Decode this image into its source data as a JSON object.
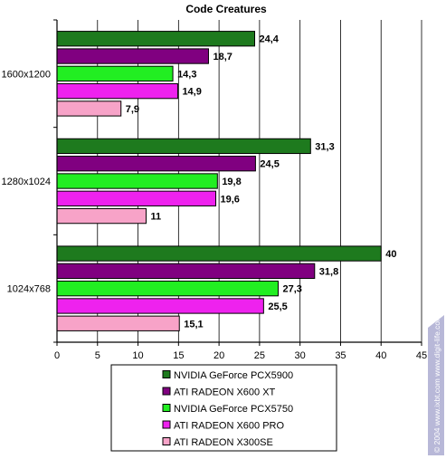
{
  "chart_data": {
    "type": "bar",
    "orientation": "horizontal",
    "title": "Code Creatures",
    "categories": [
      "1600x1200",
      "1280x1024",
      "1024x768"
    ],
    "series": [
      {
        "name": "NVIDIA GeForce PCX5900",
        "color": "#1e7a1e",
        "values": [
          24.4,
          31.3,
          40
        ]
      },
      {
        "name": "ATI  RADEON X600 XT",
        "color": "#800080",
        "values": [
          18.7,
          24.5,
          31.8
        ]
      },
      {
        "name": "NVIDIA GeForce PCX5750",
        "color": "#22ee22",
        "values": [
          14.3,
          19.8,
          27.3
        ]
      },
      {
        "name": "ATI RADEON X600 PRO",
        "color": "#ee22ee",
        "values": [
          14.9,
          19.6,
          25.5
        ]
      },
      {
        "name": "ATI RADEON X300SE",
        "color": "#f7a3c8",
        "values": [
          7.9,
          11,
          15.1
        ]
      }
    ],
    "data_labels": [
      [
        "24,4",
        "18,7",
        "14,3",
        "14,9",
        "7,9"
      ],
      [
        "31,3",
        "24,5",
        "19,8",
        "19,6",
        "11"
      ],
      [
        "40",
        "31,8",
        "27,3",
        "25,5",
        "15,1"
      ]
    ],
    "xticks": [
      "0",
      "5",
      "10",
      "15",
      "20",
      "25",
      "30",
      "35",
      "40",
      "45"
    ],
    "xlim": [
      0,
      45
    ],
    "grid": true,
    "legend_position": "bottom"
  },
  "watermark": "© 2004 www.ixbt.com www.digit-life.com"
}
